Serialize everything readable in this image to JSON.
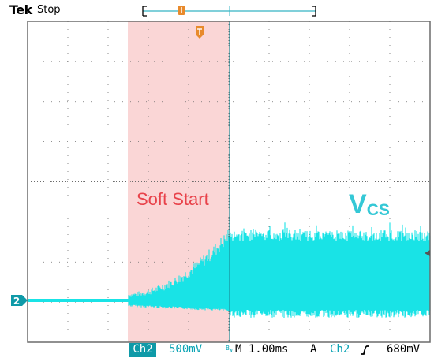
{
  "header": {
    "brand": "Tek",
    "state": "Stop"
  },
  "annotations": {
    "soft_start": "Soft Start",
    "vcs_main": "V",
    "vcs_sub": "CS"
  },
  "channel_marker": "2",
  "status_bar": {
    "channel": "Ch2",
    "volts_per_div": "500mV",
    "bw_marker": "B_W",
    "timebase": "M 1.00ms",
    "trigger_mode": "A",
    "trigger_source": "Ch2",
    "trigger_slope_icon": "rising-edge-icon",
    "trigger_level": "680mV"
  },
  "colors": {
    "trace": "#19e3e6",
    "highlight": "#f9cfcf",
    "highlight_text": "#e8424a",
    "vcs_text": "#35c8d6",
    "status_text": "#0aa3b4",
    "status_channel_bg": "#0f9aa8",
    "trigger_marker": "#e88a2c",
    "grid": "#6b6b6b"
  }
}
